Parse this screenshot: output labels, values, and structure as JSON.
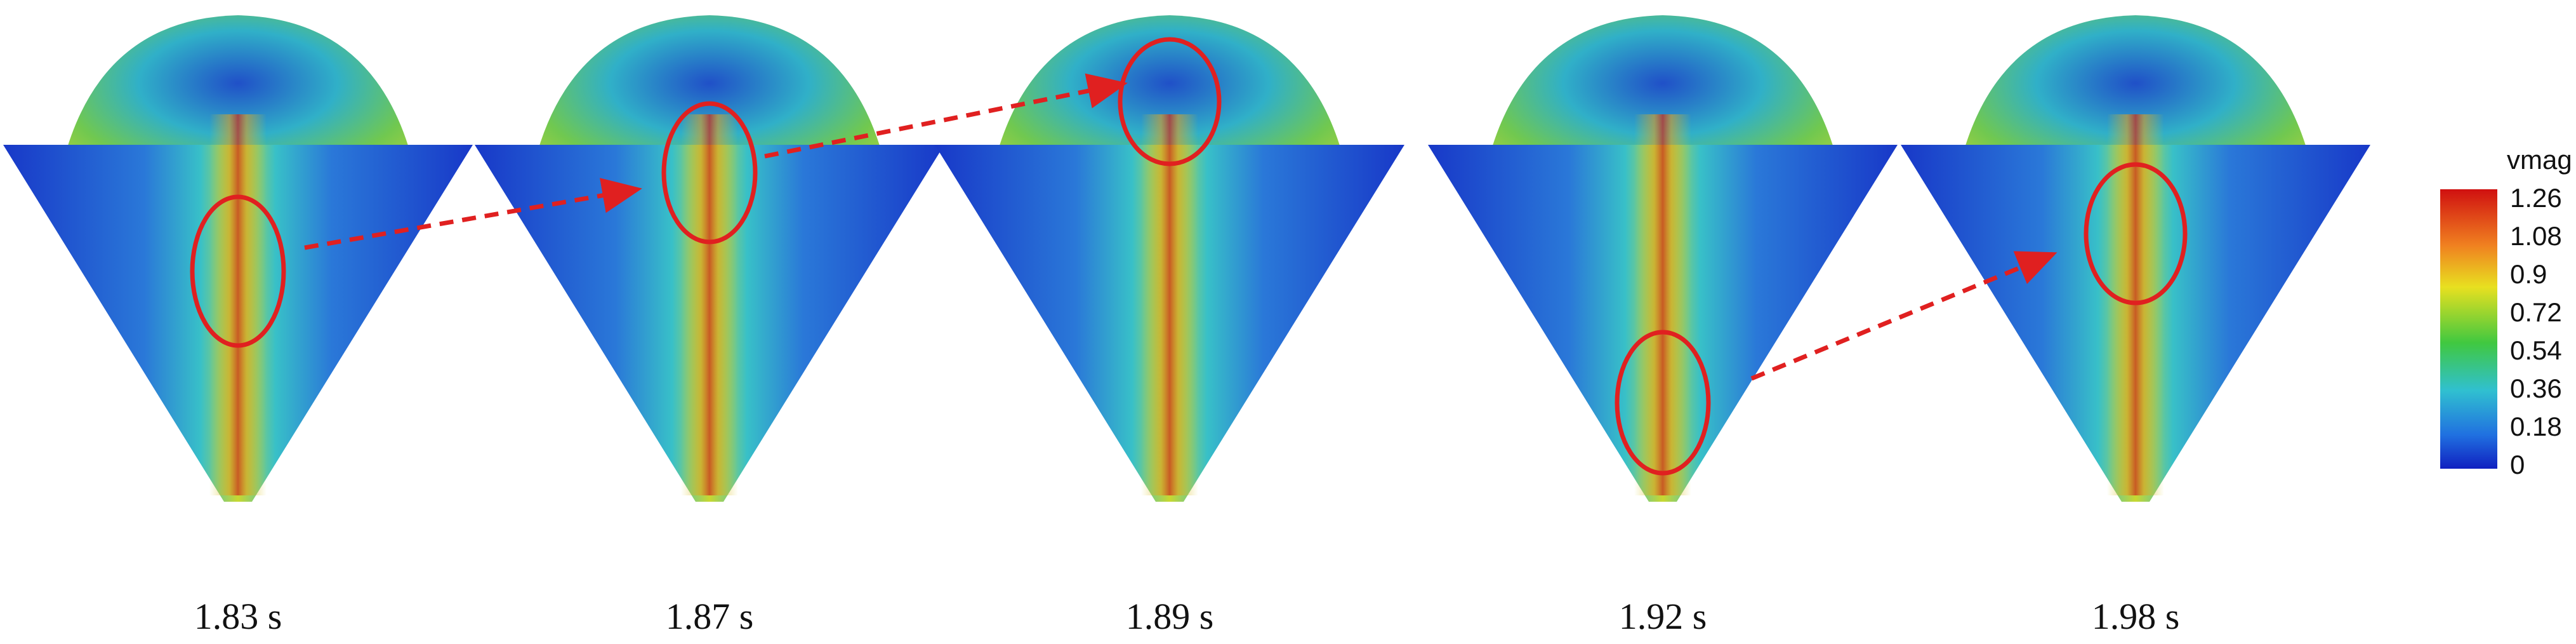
{
  "panels": [
    {
      "label": "1.83 s"
    },
    {
      "label": "1.87 s"
    },
    {
      "label": "1.89 s"
    },
    {
      "label": "1.92 s"
    },
    {
      "label": "1.98 s"
    }
  ],
  "colorbar": {
    "title": "vmag",
    "ticks": [
      1.26,
      1.08,
      0.9,
      0.72,
      0.54,
      0.36,
      0.18,
      0
    ]
  }
}
